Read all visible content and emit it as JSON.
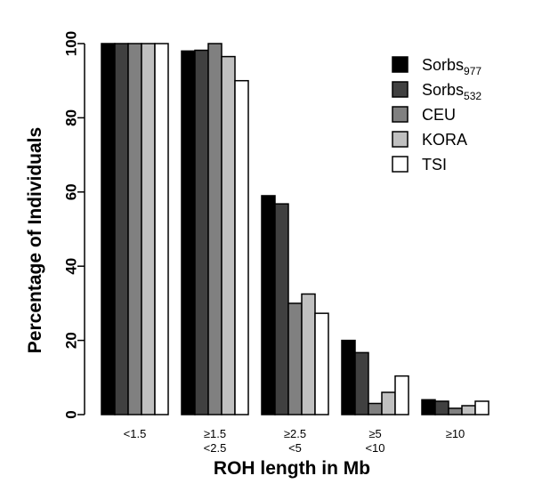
{
  "chart_data": {
    "type": "bar",
    "categories": [
      [
        "<1.5"
      ],
      [
        "≥1.5",
        "<2.5"
      ],
      [
        "≥2.5",
        "<5"
      ],
      [
        "≥5",
        "<10"
      ],
      [
        "≥10"
      ]
    ],
    "series": [
      {
        "name": "Sorbs",
        "name_sub": "977",
        "color": "#000000",
        "values": [
          100,
          98,
          59,
          20,
          4
        ]
      },
      {
        "name": "Sorbs",
        "name_sub": "532",
        "color": "#404040",
        "values": [
          100,
          98.2,
          56.8,
          16.7,
          3.6
        ]
      },
      {
        "name": "CEU",
        "name_sub": "",
        "color": "#808080",
        "values": [
          100,
          100,
          30,
          3,
          1.7
        ]
      },
      {
        "name": "KORA",
        "name_sub": "",
        "color": "#c0c0c0",
        "values": [
          100,
          96.5,
          32.5,
          6,
          2.4
        ]
      },
      {
        "name": "TSI",
        "name_sub": "",
        "color": "#ffffff",
        "values": [
          100,
          90,
          27.3,
          10.4,
          3.6
        ]
      }
    ],
    "xlabel": "ROH length in Mb",
    "ylabel": "Percentage of Individuals",
    "ylim": [
      0,
      100
    ],
    "yticks": [
      0,
      20,
      40,
      60,
      80,
      100
    ],
    "legend_position": "top-right",
    "grid": false
  }
}
